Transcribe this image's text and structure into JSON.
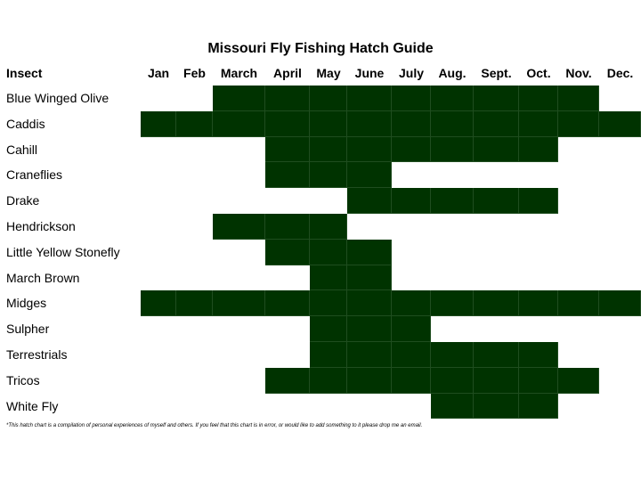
{
  "chart_data": {
    "type": "table",
    "title": "Missouri Fly Fishing Hatch Guide",
    "row_header": "Insect",
    "months": [
      "Jan",
      "Feb",
      "March",
      "April",
      "May",
      "June",
      "July",
      "Aug.",
      "Sept.",
      "Oct.",
      "Nov.",
      "Dec."
    ],
    "rows": [
      {
        "insect": "Blue Winged Olive",
        "active": [
          3,
          4,
          5,
          6,
          7,
          8,
          9,
          10,
          11
        ]
      },
      {
        "insect": "Caddis",
        "active": [
          1,
          2,
          3,
          4,
          5,
          6,
          7,
          8,
          9,
          10,
          11,
          12
        ]
      },
      {
        "insect": "Cahill",
        "active": [
          4,
          5,
          6,
          7,
          8,
          9,
          10
        ]
      },
      {
        "insect": "Craneflies",
        "active": [
          4,
          5,
          6
        ]
      },
      {
        "insect": "Drake",
        "active": [
          6,
          7,
          8,
          9,
          10
        ]
      },
      {
        "insect": "Hendrickson",
        "active": [
          3,
          4,
          5
        ]
      },
      {
        "insect": "Little Yellow Stonefly",
        "active": [
          4,
          5,
          6
        ]
      },
      {
        "insect": "March Brown",
        "active": [
          5,
          6
        ]
      },
      {
        "insect": "Midges",
        "active": [
          1,
          2,
          3,
          4,
          5,
          6,
          7,
          8,
          9,
          10,
          11,
          12
        ]
      },
      {
        "insect": "Sulpher",
        "active": [
          5,
          6,
          7
        ]
      },
      {
        "insect": "Terrestrials",
        "active": [
          5,
          6,
          7,
          8,
          9,
          10
        ]
      },
      {
        "insect": "Tricos",
        "active": [
          4,
          5,
          6,
          7,
          8,
          9,
          10,
          11
        ]
      },
      {
        "insect": "White Fly",
        "active": [
          8,
          9,
          10
        ]
      }
    ],
    "cell_color": "#003300",
    "footnote": "*This hatch chart is a compilation of personal experiences of myself and others. If you feel that this chart is in error, or would like to add something to it please drop me an email."
  }
}
